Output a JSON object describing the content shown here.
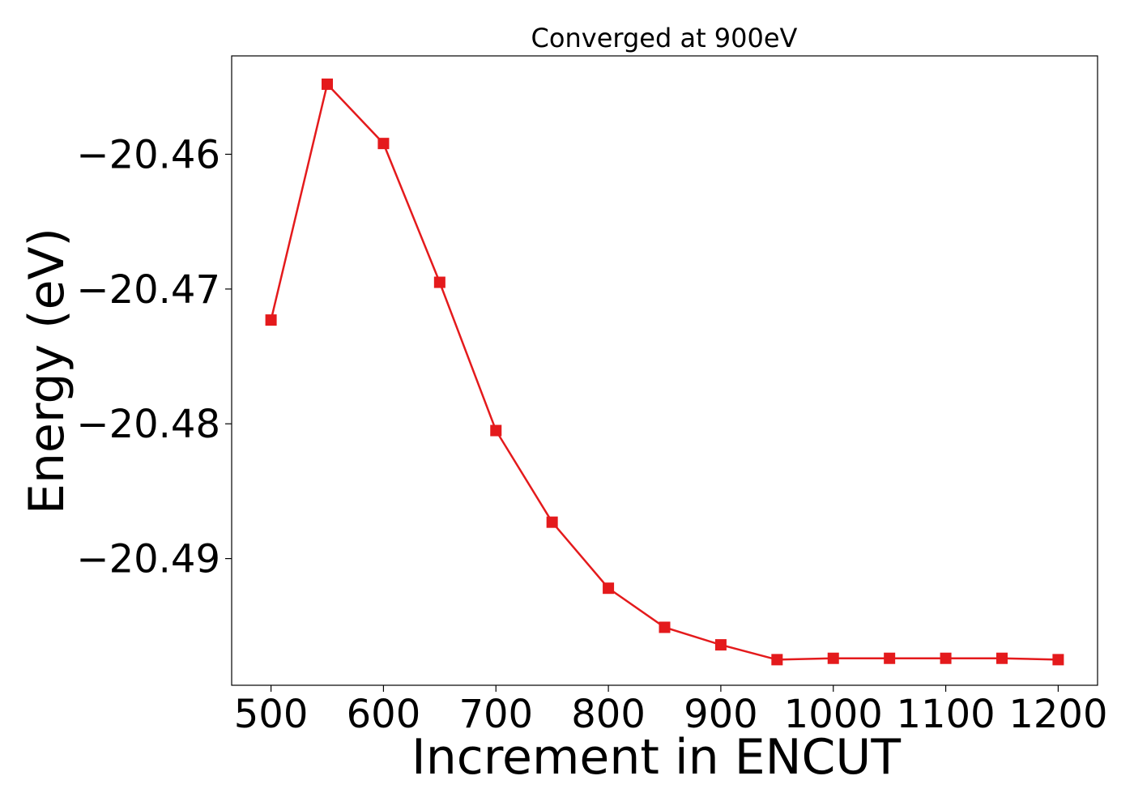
{
  "chart_data": {
    "type": "line",
    "title": "Converged at 900eV",
    "xlabel": "Increment in ENCUT",
    "ylabel": "Energy (eV)",
    "xlim": [
      465,
      1235
    ],
    "ylim": [
      -20.4994,
      -20.4527
    ],
    "xticks": [
      500,
      600,
      700,
      800,
      900,
      1000,
      1100,
      1200
    ],
    "yticks": [
      -20.46,
      -20.47,
      -20.48,
      -20.49
    ],
    "ytick_labels": [
      "−20.46",
      "−20.47",
      "−20.48",
      "−20.49"
    ],
    "grid": false,
    "legend": "none",
    "series": [
      {
        "color": "#e41a1c",
        "marker": "square",
        "x": [
          500,
          550,
          600,
          650,
          700,
          750,
          800,
          850,
          900,
          950,
          1000,
          1050,
          1100,
          1150,
          1200
        ],
        "y": [
          -20.4723,
          -20.4548,
          -20.4592,
          -20.4695,
          -20.4805,
          -20.4873,
          -20.4922,
          -20.4951,
          -20.4964,
          -20.4975,
          -20.4974,
          -20.4974,
          -20.4974,
          -20.4974,
          -20.4975
        ]
      }
    ]
  }
}
